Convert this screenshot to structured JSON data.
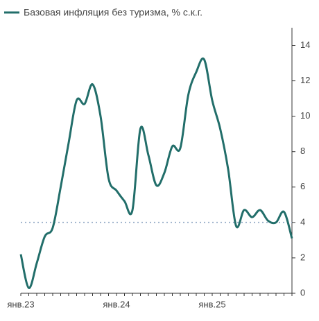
{
  "chart_data": {
    "type": "line",
    "title": "Базовая инфляция без туризма, % с.к.г.",
    "categories": [
      "янв.23",
      null,
      null,
      null,
      null,
      null,
      null,
      null,
      null,
      null,
      null,
      null,
      "янв.24",
      null,
      null,
      null,
      null,
      null,
      null,
      null,
      null,
      null,
      null,
      null,
      "янв.25",
      null,
      null,
      null,
      null,
      null,
      null,
      null,
      null,
      null,
      null
    ],
    "series": [
      {
        "name": "Базовая инфляция без туризма, % с.к.г.",
        "color": "#226e6a",
        "values": [
          2.2,
          0.3,
          1.7,
          3.2,
          3.7,
          6.0,
          8.5,
          10.9,
          10.7,
          11.8,
          10.0,
          6.5,
          5.8,
          5.2,
          4.7,
          9.3,
          7.8,
          6.1,
          6.8,
          8.3,
          8.2,
          11.2,
          12.5,
          13.2,
          10.9,
          9.3,
          7.0,
          3.8,
          4.7,
          4.3,
          4.7,
          4.1,
          4.0,
          4.6,
          3.1
        ]
      }
    ],
    "ylim": [
      0,
      15
    ],
    "yticks": [
      0,
      2,
      4,
      6,
      8,
      10,
      12,
      14
    ],
    "reference_line": {
      "value": 4,
      "color": "#9fb3cc"
    },
    "y_axis_side": "right"
  }
}
